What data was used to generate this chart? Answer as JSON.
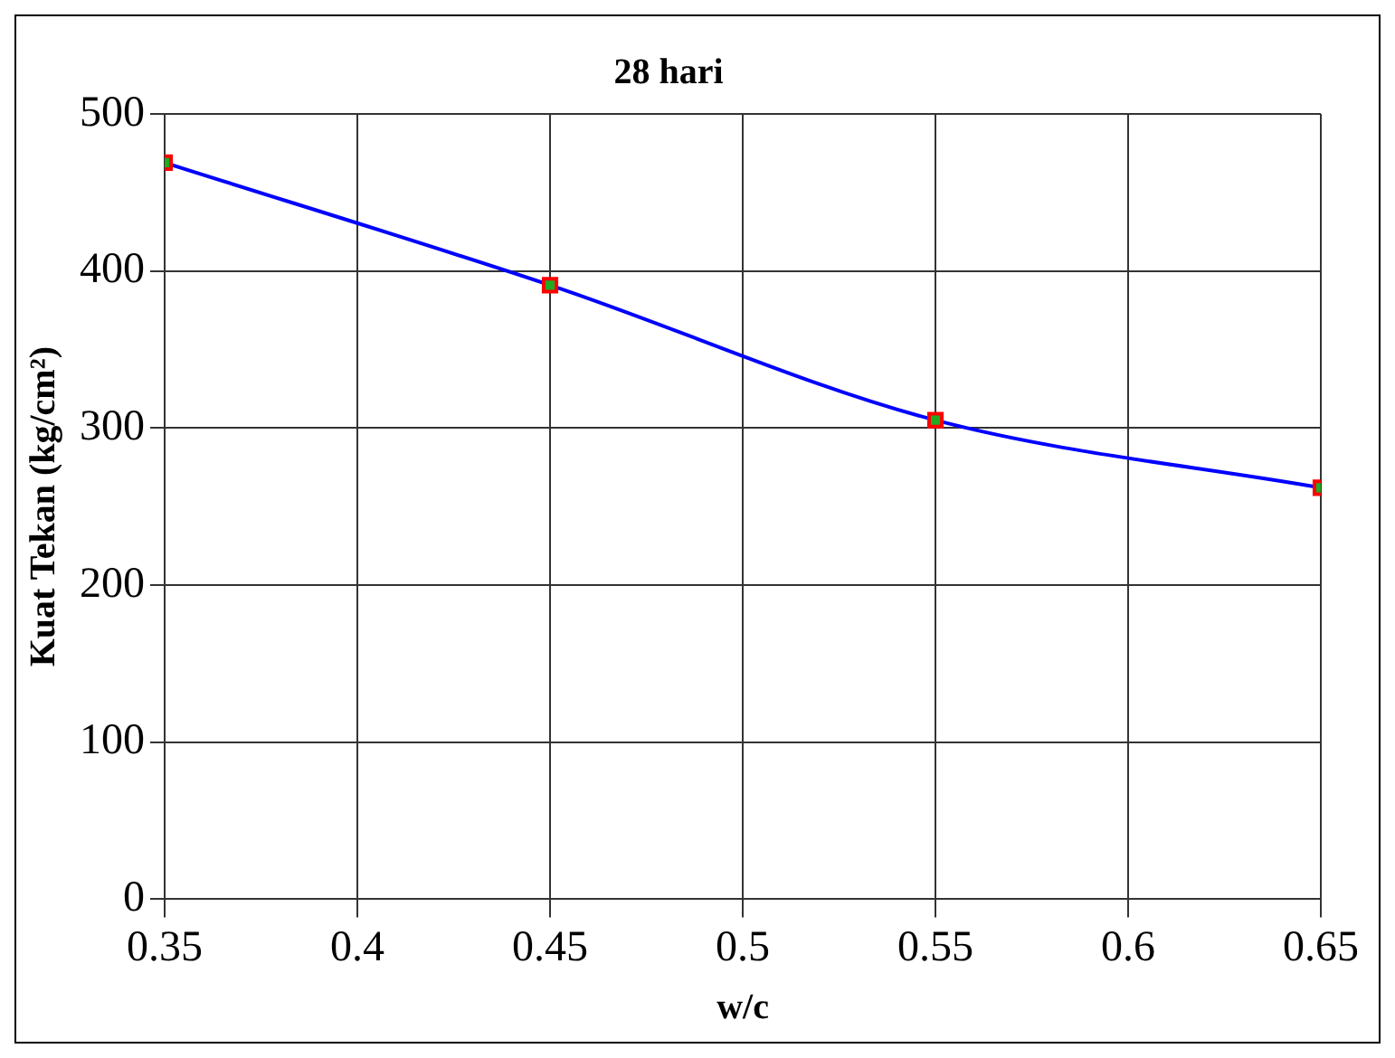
{
  "chart_data": {
    "type": "line",
    "title": "28 hari",
    "xlabel": "w/c",
    "ylabel": "Kuat Tekan (kg/cm²)",
    "x": [
      0.35,
      0.45,
      0.55,
      0.65
    ],
    "series": [
      {
        "color": "#0000ff",
        "values": [
          469,
          391,
          305,
          262
        ]
      }
    ],
    "xlim": [
      0.35,
      0.65
    ],
    "xticks": [
      0.35,
      0.4,
      0.45,
      0.5,
      0.55,
      0.6,
      0.65
    ],
    "ylim": [
      0,
      500
    ],
    "yticks": [
      0,
      100,
      200,
      300,
      400,
      500
    ],
    "grid": true,
    "legend": false,
    "marker": "square",
    "line_style": "solid"
  }
}
